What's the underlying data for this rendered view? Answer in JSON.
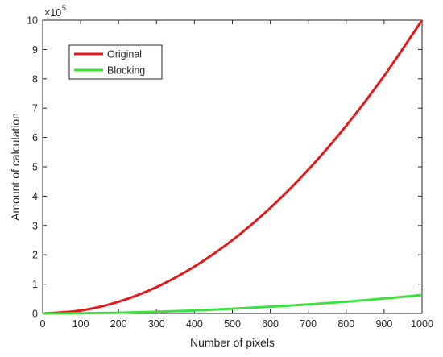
{
  "chart_data": {
    "type": "line",
    "title": "",
    "xlabel": "Number of pixels",
    "ylabel": "Amount of calculation",
    "xlim": [
      0,
      1000
    ],
    "ylim": [
      0,
      10
    ],
    "y_multiplier_base": "×10",
    "y_multiplier_exp": "5",
    "x_ticks": [
      "0",
      "100",
      "200",
      "300",
      "400",
      "500",
      "600",
      "700",
      "800",
      "900",
      "1000"
    ],
    "y_ticks": [
      "0",
      "1",
      "2",
      "3",
      "4",
      "5",
      "6",
      "7",
      "8",
      "9",
      "10"
    ],
    "grid": false,
    "legend_position": "top-left",
    "series": [
      {
        "name": "Original",
        "color": "#e31a1c",
        "x": [
          0,
          100,
          200,
          300,
          400,
          500,
          600,
          700,
          800,
          900,
          1000
        ],
        "y": [
          0,
          0.1,
          0.4,
          0.9,
          1.6,
          2.5,
          3.6,
          4.9,
          6.4,
          8.1,
          10
        ]
      },
      {
        "name": "Blocking",
        "color": "#3ee03e",
        "x": [
          0,
          100,
          200,
          300,
          400,
          500,
          600,
          700,
          800,
          900,
          1000
        ],
        "y": [
          0,
          0.0063,
          0.025,
          0.057,
          0.1,
          0.16,
          0.23,
          0.31,
          0.4,
          0.51,
          0.63
        ]
      }
    ]
  }
}
